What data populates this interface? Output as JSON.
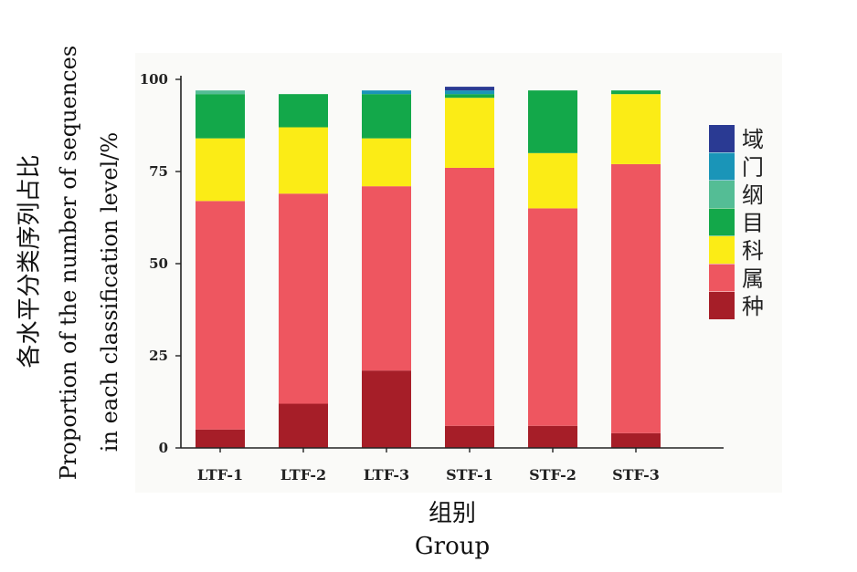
{
  "chart_data": {
    "type": "bar",
    "stacked": true,
    "categories": [
      "LTF-1",
      "LTF-2",
      "LTF-3",
      "STF-1",
      "STF-2",
      "STF-3"
    ],
    "series": [
      {
        "name": "种",
        "color": "#a61e28",
        "values": [
          5,
          12,
          21,
          6,
          6,
          4
        ]
      },
      {
        "name": "属",
        "color": "#ee5660",
        "values": [
          62,
          57,
          50,
          70,
          59,
          73
        ]
      },
      {
        "name": "科",
        "color": "#fbec16",
        "values": [
          17,
          18,
          13,
          19,
          15,
          19
        ]
      },
      {
        "name": "目",
        "color": "#13a84a",
        "values": [
          12,
          9,
          12,
          1,
          17,
          1
        ]
      },
      {
        "name": "纲",
        "color": "#54bd95",
        "values": [
          1,
          0,
          0,
          0,
          0,
          0
        ]
      },
      {
        "name": "门",
        "color": "#1a95b8",
        "values": [
          0,
          0,
          1,
          1,
          0,
          0
        ]
      },
      {
        "name": "域",
        "color": "#2a3a93",
        "values": [
          0,
          0,
          0,
          1,
          0,
          0
        ]
      }
    ],
    "legend_order": [
      "域",
      "门",
      "纲",
      "目",
      "科",
      "属",
      "种"
    ],
    "legend_position": "right",
    "yticks": [
      "0",
      "25",
      "50",
      "75",
      "100"
    ],
    "ylim": [
      0,
      100
    ],
    "ylabel_zh": "各水平分类序列占比",
    "ylabel_en_line1": "Proportion of the number of sequences",
    "ylabel_en_line2": "in each classification level/%",
    "xlabel_zh": "组别",
    "xlabel_en": "Group",
    "grid": false
  }
}
